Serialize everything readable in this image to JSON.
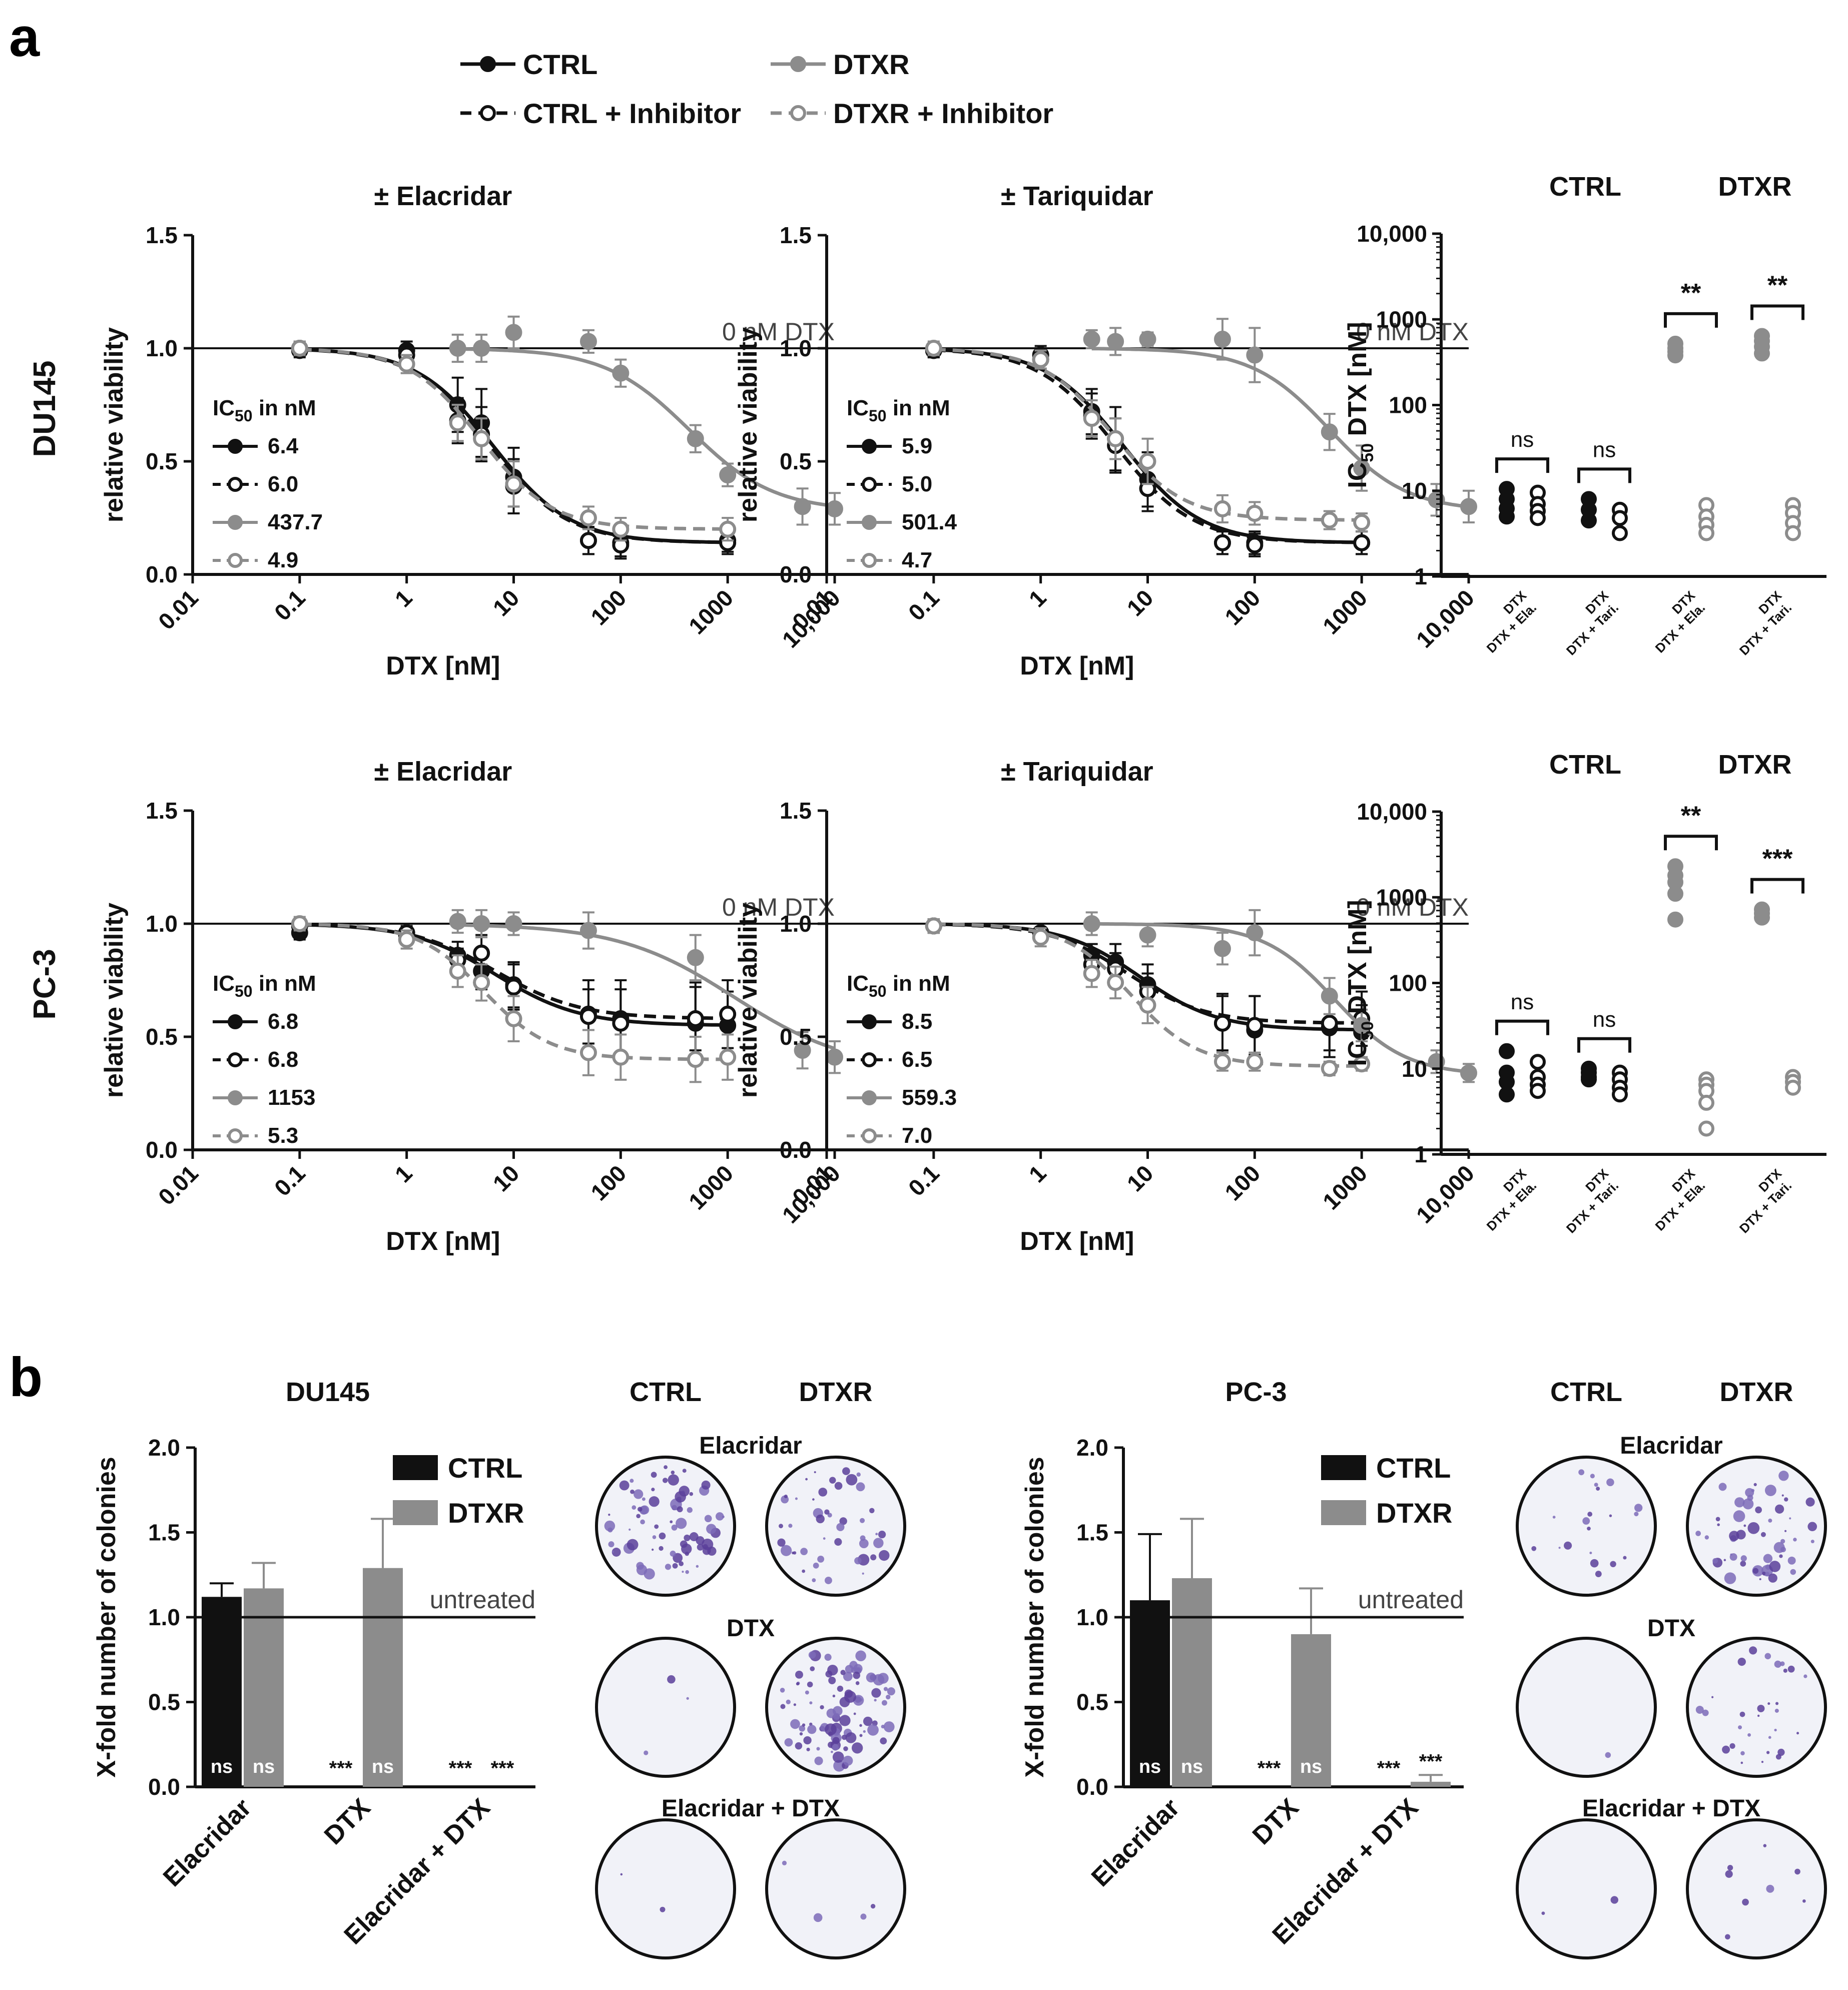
{
  "figure": {
    "panel_a_letter": "a",
    "panel_b_letter": "b",
    "legend": [
      {
        "label": "CTRL",
        "color": "#111111",
        "style": "solid",
        "marker": "filled"
      },
      {
        "label": "CTRL + Inhibitor",
        "color": "#111111",
        "style": "dashed",
        "marker": "open"
      },
      {
        "label": "DTXR",
        "color": "#8c8c8c",
        "style": "solid",
        "marker": "filled"
      },
      {
        "label": "DTXR + Inhibitor",
        "color": "#8c8c8c",
        "style": "dashed",
        "marker": "open"
      }
    ],
    "row_labels": [
      "DU145",
      "PC-3"
    ],
    "ref_line_label": "0 nM DTX",
    "ic50_header": "IC",
    "ic50_header_sub": "50",
    "ic50_header_tail": " in nM",
    "dot_col_headers": [
      "CTRL",
      "DTXR"
    ],
    "dot_ylabel": "IC",
    "dot_ylabel_sub": "50",
    "dot_ylabel_tail": " DTX [nM]",
    "dot_xlabel_top": "DTX",
    "bar_legend": [
      "CTRL",
      "DTXR"
    ],
    "untreated_label": "untreated",
    "plate_cols": [
      "CTRL",
      "DTXR"
    ],
    "plate_rows": [
      "Elacridar",
      "DTX",
      "Elacridar + DTX"
    ]
  },
  "chart_data": [
    {
      "type": "line",
      "id": "du145-elacridar",
      "title": "± Elacridar",
      "xlabel": "DTX [nM]",
      "ylabel": "relative viability",
      "xscale": "log",
      "xlim": [
        0.01,
        10000
      ],
      "ylim": [
        0.0,
        1.5
      ],
      "x_ticks": [
        "0.01",
        "0.1",
        "1",
        "10",
        "100",
        "1000",
        "10,000"
      ],
      "y_ticks": [
        "0.0",
        "0.5",
        "1.0",
        "1.5"
      ],
      "reference_y": 1.0,
      "ic50": [
        "6.4",
        "6.0",
        "437.7",
        "4.9"
      ],
      "series": [
        {
          "ic50": 6.4,
          "top": 1.0,
          "bottom": 0.14,
          "hill": 1.2,
          "x": [
            0.1,
            1,
            3,
            5,
            10,
            50,
            100,
            1000
          ],
          "y": [
            0.99,
            0.99,
            0.75,
            0.67,
            0.43,
            0.15,
            0.14,
            0.15
          ],
          "err": [
            0.03,
            0.04,
            0.12,
            0.15,
            0.13,
            0.06,
            0.06,
            0.05
          ]
        },
        {
          "ic50": 6.0,
          "top": 1.0,
          "bottom": 0.14,
          "hill": 1.2,
          "x": [
            0.1,
            1,
            3,
            5,
            10,
            50,
            100,
            1000
          ],
          "y": [
            1.0,
            0.97,
            0.68,
            0.62,
            0.39,
            0.15,
            0.13,
            0.14
          ],
          "err": [
            0.03,
            0.04,
            0.1,
            0.12,
            0.12,
            0.06,
            0.06,
            0.05
          ]
        },
        {
          "ic50": 437.7,
          "top": 1.0,
          "bottom": 0.28,
          "hill": 1.1,
          "x": [
            3,
            5,
            10,
            50,
            100,
            500,
            1000,
            5000,
            10000
          ],
          "y": [
            1.0,
            1.0,
            1.07,
            1.03,
            0.89,
            0.6,
            0.44,
            0.3,
            0.29
          ],
          "err": [
            0.06,
            0.06,
            0.07,
            0.05,
            0.06,
            0.06,
            0.05,
            0.08,
            0.07
          ]
        },
        {
          "ic50": 4.9,
          "top": 1.0,
          "bottom": 0.2,
          "hill": 1.3,
          "x": [
            0.1,
            1,
            3,
            5,
            10,
            50,
            100,
            1000
          ],
          "y": [
            1.0,
            0.93,
            0.67,
            0.6,
            0.4,
            0.25,
            0.2,
            0.2
          ],
          "err": [
            0.03,
            0.04,
            0.08,
            0.09,
            0.1,
            0.05,
            0.05,
            0.05
          ]
        }
      ]
    },
    {
      "type": "line",
      "id": "du145-tariquidar",
      "title": "± Tariquidar",
      "xlabel": "DTX [nM]",
      "ylabel": "relative viability",
      "xscale": "log",
      "xlim": [
        0.01,
        10000
      ],
      "ylim": [
        0.0,
        1.5
      ],
      "x_ticks": [
        "0.01",
        "0.1",
        "1",
        "10",
        "100",
        "1000",
        "10,000"
      ],
      "y_ticks": [
        "0.0",
        "0.5",
        "1.0",
        "1.5"
      ],
      "reference_y": 1.0,
      "ic50": [
        "5.9",
        "5.0",
        "501.4",
        "4.7"
      ],
      "series": [
        {
          "ic50": 5.9,
          "top": 1.0,
          "bottom": 0.14,
          "hill": 1.2,
          "x": [
            0.1,
            1,
            3,
            5,
            10,
            50,
            100,
            1000
          ],
          "y": [
            0.99,
            0.97,
            0.72,
            0.6,
            0.42,
            0.14,
            0.14,
            0.14
          ],
          "err": [
            0.03,
            0.04,
            0.1,
            0.14,
            0.12,
            0.05,
            0.05,
            0.05
          ]
        },
        {
          "ic50": 5.0,
          "top": 1.0,
          "bottom": 0.14,
          "hill": 1.2,
          "x": [
            0.1,
            1,
            3,
            5,
            10,
            50,
            100,
            1000
          ],
          "y": [
            0.99,
            0.95,
            0.7,
            0.57,
            0.38,
            0.14,
            0.13,
            0.14
          ],
          "err": [
            0.03,
            0.04,
            0.1,
            0.12,
            0.1,
            0.05,
            0.05,
            0.05
          ]
        },
        {
          "ic50": 501.4,
          "top": 1.0,
          "bottom": 0.28,
          "hill": 1.2,
          "x": [
            3,
            5,
            10,
            50,
            100,
            500,
            1000,
            5000,
            10000
          ],
          "y": [
            1.04,
            1.03,
            1.04,
            1.04,
            0.97,
            0.63,
            0.47,
            0.33,
            0.3
          ],
          "err": [
            0.04,
            0.06,
            0.03,
            0.09,
            0.12,
            0.08,
            0.1,
            0.07,
            0.07
          ]
        },
        {
          "ic50": 4.7,
          "top": 1.0,
          "bottom": 0.24,
          "hill": 1.3,
          "x": [
            0.1,
            1,
            3,
            5,
            10,
            50,
            100,
            500,
            1000
          ],
          "y": [
            1.0,
            0.95,
            0.69,
            0.6,
            0.5,
            0.29,
            0.27,
            0.24,
            0.23
          ],
          "err": [
            0.03,
            0.04,
            0.08,
            0.09,
            0.1,
            0.06,
            0.05,
            0.04,
            0.04
          ]
        }
      ]
    },
    {
      "type": "scatter",
      "id": "du145-ic50",
      "ylabel": "IC50 DTX [nM]",
      "yscale": "log",
      "ylim": [
        1,
        10000
      ],
      "y_ticks": [
        "1",
        "10",
        "100",
        "1000",
        "10,000"
      ],
      "x_labels": [
        "DTX + Ela.",
        "DTX + Tari.",
        "DTX + Ela.",
        "DTX + Tari."
      ],
      "significance": [
        "ns",
        "ns",
        "**",
        "**"
      ],
      "groups": [
        {
          "dtx": [
            10.5,
            8.0,
            6.2,
            5.0
          ],
          "inh": [
            9.5,
            7.0,
            5.8,
            4.8
          ]
        },
        {
          "dtx": [
            8.0,
            6.0,
            4.5
          ],
          "inh": [
            6.0,
            4.8,
            3.2
          ]
        },
        {
          "dtx": [
            520,
            460,
            420,
            380
          ],
          "inh": [
            6.8,
            5.0,
            4.0,
            3.2
          ]
        },
        {
          "dtx": [
            640,
            560,
            480,
            400
          ],
          "inh": [
            6.8,
            5.5,
            4.2,
            3.2
          ]
        }
      ]
    },
    {
      "type": "line",
      "id": "pc3-elacridar",
      "title": "± Elacridar",
      "xlabel": "DTX [nM]",
      "ylabel": "relative viability",
      "xscale": "log",
      "xlim": [
        0.01,
        10000
      ],
      "ylim": [
        0.0,
        1.5
      ],
      "x_ticks": [
        "0.01",
        "0.1",
        "1",
        "10",
        "100",
        "1000",
        "10,000"
      ],
      "y_ticks": [
        "0.0",
        "0.5",
        "1.0",
        "1.5"
      ],
      "reference_y": 1.0,
      "ic50": [
        "6.8",
        "6.8",
        "1153",
        "5.3"
      ],
      "series": [
        {
          "ic50": 6.8,
          "top": 1.0,
          "bottom": 0.55,
          "hill": 1.1,
          "x": [
            0.1,
            1,
            3,
            5,
            10,
            50,
            100,
            500,
            1000
          ],
          "y": [
            0.96,
            0.95,
            0.86,
            0.79,
            0.73,
            0.6,
            0.58,
            0.56,
            0.55
          ],
          "err": [
            0.03,
            0.04,
            0.06,
            0.08,
            0.1,
            0.15,
            0.17,
            0.18,
            0.15
          ]
        },
        {
          "ic50": 6.8,
          "top": 1.0,
          "bottom": 0.58,
          "hill": 1.1,
          "x": [
            0.1,
            1,
            3,
            5,
            10,
            50,
            100,
            500,
            1000
          ],
          "y": [
            0.99,
            0.96,
            0.84,
            0.87,
            0.72,
            0.59,
            0.56,
            0.58,
            0.6
          ],
          "err": [
            0.03,
            0.04,
            0.05,
            0.08,
            0.1,
            0.12,
            0.15,
            0.14,
            0.15
          ]
        },
        {
          "ic50": 1153,
          "top": 1.0,
          "bottom": 0.35,
          "hill": 0.8,
          "x": [
            3,
            5,
            10,
            50,
            500,
            5000,
            10000
          ],
          "y": [
            1.01,
            1.0,
            1.0,
            0.97,
            0.85,
            0.44,
            0.41
          ],
          "err": [
            0.05,
            0.06,
            0.05,
            0.08,
            0.1,
            0.08,
            0.07
          ]
        },
        {
          "ic50": 5.3,
          "top": 1.0,
          "bottom": 0.4,
          "hill": 1.4,
          "x": [
            0.1,
            1,
            3,
            5,
            10,
            50,
            100,
            500,
            1000
          ],
          "y": [
            1.0,
            0.93,
            0.79,
            0.74,
            0.58,
            0.43,
            0.41,
            0.4,
            0.41
          ],
          "err": [
            0.03,
            0.04,
            0.07,
            0.08,
            0.1,
            0.1,
            0.1,
            0.1,
            0.1
          ]
        }
      ]
    },
    {
      "type": "line",
      "id": "pc3-tariquidar",
      "title": "± Tariquidar",
      "xlabel": "DTX [nM]",
      "ylabel": "relative viability",
      "xscale": "log",
      "xlim": [
        0.01,
        10000
      ],
      "ylim": [
        0.0,
        1.5
      ],
      "x_ticks": [
        "0.01",
        "0.1",
        "1",
        "10",
        "100",
        "1000",
        "10,000"
      ],
      "y_ticks": [
        "0.0",
        "0.5",
        "1.0",
        "1.5"
      ],
      "reference_y": 1.0,
      "ic50": [
        "8.5",
        "6.5",
        "559.3",
        "7.0"
      ],
      "series": [
        {
          "ic50": 8.5,
          "top": 1.0,
          "bottom": 0.53,
          "hill": 1.2,
          "x": [
            0.1,
            1,
            3,
            5,
            10,
            50,
            100,
            500,
            1000
          ],
          "y": [
            0.99,
            0.96,
            0.86,
            0.83,
            0.73,
            0.56,
            0.53,
            0.54,
            0.52
          ],
          "err": [
            0.03,
            0.04,
            0.05,
            0.08,
            0.09,
            0.13,
            0.15,
            0.13,
            0.12
          ]
        },
        {
          "ic50": 6.5,
          "top": 1.0,
          "bottom": 0.56,
          "hill": 1.2,
          "x": [
            0.1,
            1,
            3,
            5,
            10,
            50,
            100,
            500,
            1000
          ],
          "y": [
            0.99,
            0.96,
            0.82,
            0.8,
            0.7,
            0.56,
            0.55,
            0.56,
            0.58
          ],
          "err": [
            0.03,
            0.04,
            0.05,
            0.07,
            0.08,
            0.12,
            0.13,
            0.12,
            0.12
          ]
        },
        {
          "ic50": 559.3,
          "top": 1.0,
          "bottom": 0.33,
          "hill": 1.3,
          "x": [
            3,
            10,
            50,
            100,
            500,
            1000,
            5000,
            10000
          ],
          "y": [
            1.0,
            0.95,
            0.89,
            0.96,
            0.68,
            0.55,
            0.39,
            0.34
          ],
          "err": [
            0.05,
            0.05,
            0.07,
            0.1,
            0.08,
            0.07,
            0.05,
            0.04
          ]
        },
        {
          "ic50": 7.0,
          "top": 1.0,
          "bottom": 0.37,
          "hill": 1.4,
          "x": [
            0.1,
            1,
            3,
            5,
            10,
            50,
            100,
            500,
            1000
          ],
          "y": [
            0.99,
            0.94,
            0.78,
            0.74,
            0.64,
            0.39,
            0.39,
            0.36,
            0.38
          ],
          "err": [
            0.03,
            0.04,
            0.06,
            0.07,
            0.08,
            0.04,
            0.04,
            0.03,
            0.03
          ]
        }
      ]
    },
    {
      "type": "scatter",
      "id": "pc3-ic50",
      "ylabel": "IC50 DTX [nM]",
      "yscale": "log",
      "ylim": [
        1,
        10000
      ],
      "y_ticks": [
        "1",
        "10",
        "100",
        "1000",
        "10,000"
      ],
      "x_labels": [
        "DTX + Ela.",
        "DTX + Tari.",
        "DTX + Ela.",
        "DTX + Tari."
      ],
      "significance": [
        "ns",
        "ns",
        "**",
        "***"
      ],
      "groups": [
        {
          "dtx": [
            16,
            9,
            7,
            5
          ],
          "inh": [
            12,
            8,
            6.5,
            5.5
          ]
        },
        {
          "dtx": [
            10,
            9,
            8,
            7.5
          ],
          "inh": [
            9,
            7.5,
            6,
            5
          ]
        },
        {
          "dtx": [
            2300,
            1800,
            1500,
            1100,
            550
          ],
          "inh": [
            7.5,
            6.5,
            5.5,
            4,
            2
          ]
        },
        {
          "dtx": [
            720,
            650,
            580
          ],
          "inh": [
            8,
            7,
            6
          ]
        }
      ]
    },
    {
      "type": "bar",
      "id": "du145-colonies",
      "title": "DU145",
      "ylabel": "X-fold number of colonies",
      "ylim": [
        0.0,
        2.0
      ],
      "y_ticks": [
        "0.0",
        "0.5",
        "1.0",
        "1.5",
        "2.0"
      ],
      "categories": [
        "Elacridar",
        "DTX",
        "Elacridar + DTX"
      ],
      "reference_y": 1.0,
      "series": [
        {
          "name": "CTRL",
          "values": [
            1.12,
            0.0,
            0.0
          ],
          "err": [
            0.08,
            0,
            0
          ],
          "labels": [
            "ns",
            "***",
            "***"
          ]
        },
        {
          "name": "DTXR",
          "values": [
            1.17,
            1.29,
            0.0
          ],
          "err": [
            0.15,
            0.29,
            0
          ],
          "labels": [
            "ns",
            "ns",
            "***"
          ]
        }
      ]
    },
    {
      "type": "bar",
      "id": "pc3-colonies",
      "title": "PC-3",
      "ylabel": "X-fold number of colonies",
      "ylim": [
        0.0,
        2.0
      ],
      "y_ticks": [
        "0.0",
        "0.5",
        "1.0",
        "1.5",
        "2.0"
      ],
      "categories": [
        "Elacridar",
        "DTX",
        "Elacridar + DTX"
      ],
      "reference_y": 1.0,
      "series": [
        {
          "name": "CTRL",
          "values": [
            1.1,
            0.0,
            0.0
          ],
          "err": [
            0.39,
            0,
            0
          ],
          "labels": [
            "ns",
            "***",
            "***"
          ]
        },
        {
          "name": "DTXR",
          "values": [
            1.23,
            0.9,
            0.03
          ],
          "err": [
            0.35,
            0.27,
            0.04
          ],
          "labels": [
            "ns",
            "ns",
            "***"
          ]
        }
      ]
    }
  ],
  "plates": {
    "colonies": [
      [
        75,
        45
      ],
      [
        3,
        95
      ],
      [
        2,
        4
      ],
      [
        20,
        55
      ],
      [
        1,
        30
      ],
      [
        2,
        8
      ]
    ]
  }
}
